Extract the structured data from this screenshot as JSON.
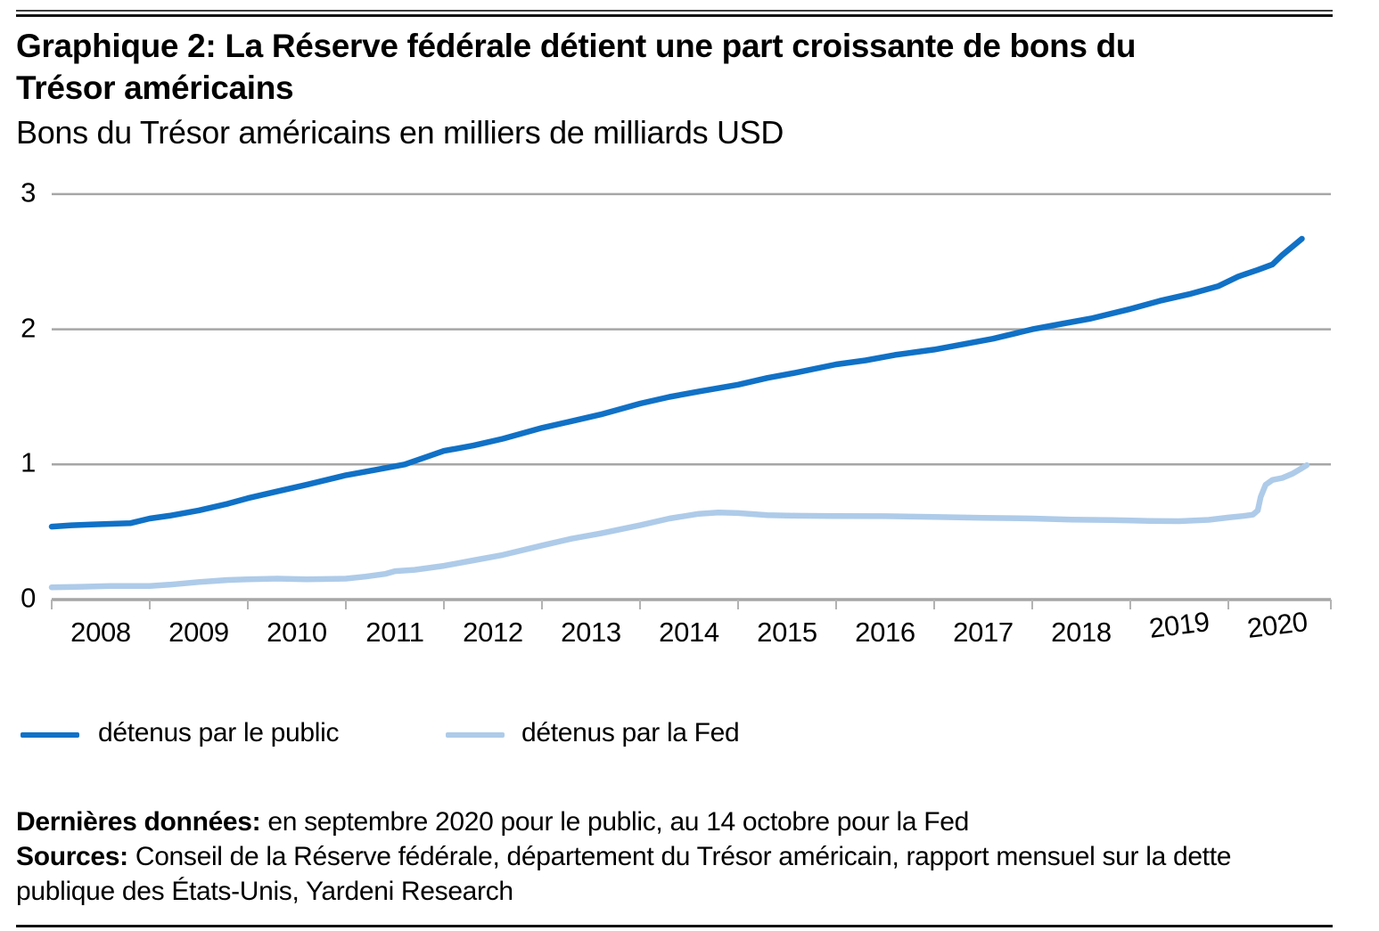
{
  "header": {
    "title_lines": [
      "Graphique 2: La Réserve fédérale détient une part croissante de bons du",
      "Trésor américains"
    ],
    "subtitle": "Bons du Trésor américains en milliers de milliards USD"
  },
  "chart_data": {
    "type": "line",
    "title": "Graphique 2: La Réserve fédérale détient une part croissante de bons du Trésor américains",
    "subtitle": "Bons du Trésor américains en milliers de milliards USD",
    "unit": "milliers de milliards USD",
    "xlabel": "",
    "ylabel": "",
    "ylim": [
      0,
      3
    ],
    "yticks": [
      0,
      1,
      2,
      3
    ],
    "xtick_years": [
      2008,
      2009,
      2010,
      2011,
      2012,
      2013,
      2014,
      2015,
      2016,
      2017,
      2018,
      2019,
      2020
    ],
    "grid": "horizontal",
    "grid_color": "#a6a6a6",
    "axis_color": "#a6a6a6",
    "legend_position": "bottom",
    "series": [
      {
        "id": "public",
        "name": "détenus par le public",
        "color": "#1071c6",
        "points": [
          [
            2008.0,
            0.54
          ],
          [
            2008.2,
            0.55
          ],
          [
            2008.4,
            0.555
          ],
          [
            2008.6,
            0.56
          ],
          [
            2008.8,
            0.565
          ],
          [
            2009.0,
            0.6
          ],
          [
            2009.2,
            0.62
          ],
          [
            2009.5,
            0.66
          ],
          [
            2009.8,
            0.71
          ],
          [
            2010.0,
            0.75
          ],
          [
            2010.3,
            0.8
          ],
          [
            2010.6,
            0.85
          ],
          [
            2011.0,
            0.92
          ],
          [
            2011.3,
            0.96
          ],
          [
            2011.6,
            1.0
          ],
          [
            2012.0,
            1.1
          ],
          [
            2012.3,
            1.14
          ],
          [
            2012.6,
            1.19
          ],
          [
            2013.0,
            1.27
          ],
          [
            2013.3,
            1.32
          ],
          [
            2013.6,
            1.37
          ],
          [
            2014.0,
            1.45
          ],
          [
            2014.3,
            1.5
          ],
          [
            2014.6,
            1.54
          ],
          [
            2015.0,
            1.59
          ],
          [
            2015.3,
            1.64
          ],
          [
            2015.6,
            1.68
          ],
          [
            2016.0,
            1.74
          ],
          [
            2016.3,
            1.77
          ],
          [
            2016.6,
            1.81
          ],
          [
            2016.85,
            1.835
          ],
          [
            2017.0,
            1.85
          ],
          [
            2017.3,
            1.89
          ],
          [
            2017.6,
            1.93
          ],
          [
            2018.0,
            2.0
          ],
          [
            2018.3,
            2.04
          ],
          [
            2018.6,
            2.08
          ],
          [
            2019.0,
            2.15
          ],
          [
            2019.3,
            2.21
          ],
          [
            2019.6,
            2.26
          ],
          [
            2019.9,
            2.32
          ],
          [
            2020.1,
            2.39
          ],
          [
            2020.3,
            2.44
          ],
          [
            2020.45,
            2.48
          ],
          [
            2020.55,
            2.55
          ],
          [
            2020.65,
            2.61
          ],
          [
            2020.75,
            2.67
          ]
        ]
      },
      {
        "id": "fed",
        "name": "détenus par la Fed",
        "color": "#aecbe9",
        "points": [
          [
            2008.0,
            0.09
          ],
          [
            2008.3,
            0.095
          ],
          [
            2008.6,
            0.1
          ],
          [
            2009.0,
            0.1
          ],
          [
            2009.2,
            0.11
          ],
          [
            2009.5,
            0.13
          ],
          [
            2009.8,
            0.145
          ],
          [
            2010.0,
            0.15
          ],
          [
            2010.3,
            0.155
          ],
          [
            2010.6,
            0.15
          ],
          [
            2011.0,
            0.155
          ],
          [
            2011.2,
            0.17
          ],
          [
            2011.4,
            0.19
          ],
          [
            2011.5,
            0.21
          ],
          [
            2011.7,
            0.22
          ],
          [
            2012.0,
            0.25
          ],
          [
            2012.3,
            0.29
          ],
          [
            2012.6,
            0.33
          ],
          [
            2013.0,
            0.4
          ],
          [
            2013.3,
            0.45
          ],
          [
            2013.6,
            0.49
          ],
          [
            2014.0,
            0.55
          ],
          [
            2014.3,
            0.6
          ],
          [
            2014.6,
            0.635
          ],
          [
            2014.8,
            0.645
          ],
          [
            2015.0,
            0.64
          ],
          [
            2015.3,
            0.625
          ],
          [
            2015.6,
            0.62
          ],
          [
            2016.0,
            0.618
          ],
          [
            2016.5,
            0.617
          ],
          [
            2017.0,
            0.612
          ],
          [
            2017.5,
            0.605
          ],
          [
            2018.0,
            0.6
          ],
          [
            2018.4,
            0.592
          ],
          [
            2018.8,
            0.588
          ],
          [
            2019.2,
            0.582
          ],
          [
            2019.5,
            0.58
          ],
          [
            2019.8,
            0.59
          ],
          [
            2020.0,
            0.607
          ],
          [
            2020.15,
            0.618
          ],
          [
            2020.25,
            0.628
          ],
          [
            2020.3,
            0.66
          ],
          [
            2020.33,
            0.76
          ],
          [
            2020.38,
            0.85
          ],
          [
            2020.45,
            0.885
          ],
          [
            2020.55,
            0.9
          ],
          [
            2020.65,
            0.93
          ],
          [
            2020.72,
            0.96
          ],
          [
            2020.8,
            0.995
          ]
        ]
      }
    ]
  },
  "legend": {
    "items": [
      {
        "label": "détenus par le public",
        "color": "#1071c6"
      },
      {
        "label": "détenus par la Fed",
        "color": "#aecbe9"
      }
    ]
  },
  "footer": {
    "last_data_label": "Dernières données:",
    "last_data_text": " en septembre 2020 pour le public, au 14 octobre pour la Fed",
    "sources_label": "Sources:",
    "sources_text": " Conseil de la Réserve fédérale, département du Trésor américain, rapport mensuel sur la dette publique des États-Unis, Yardeni Research"
  },
  "colors": {
    "public_line": "#1071c6",
    "fed_line": "#aecbe9",
    "gridline": "#a6a6a6",
    "rule": "#121212"
  }
}
